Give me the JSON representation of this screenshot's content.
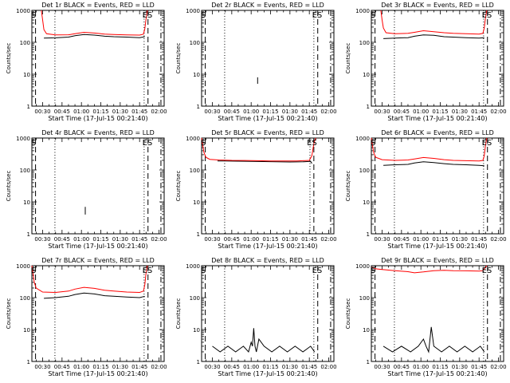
{
  "figure": {
    "title_template": "Det {det} BLACK = Events, RED = LLD",
    "xlabel": "Start Time (17-Jul-15 00:21:40)",
    "ylabel": "Counts/sec",
    "xticks": [
      "00:30",
      "00:45",
      "01:00",
      "01:15",
      "01:30",
      "01:45",
      "02:00"
    ],
    "yticks": [
      "1",
      "10",
      "100",
      "1000"
    ],
    "marker_start": "S",
    "marker_end": "ES",
    "colors": {
      "events": "#000000",
      "lld": "#ff0000"
    }
  },
  "chart_data": [
    {
      "type": "line",
      "title": "Det 1r BLACK = Events, RED = LLD",
      "det": "1r",
      "ylim": [
        1,
        1000
      ],
      "yscale": "log",
      "xlim": [
        21.67,
        124
      ],
      "series": [
        {
          "name": "BLACK = Events",
          "color": "#000000",
          "x": [
            31,
            40,
            50,
            55,
            62,
            70,
            78,
            85,
            95,
            105,
            109
          ],
          "y": [
            135,
            138,
            145,
            160,
            175,
            168,
            155,
            150,
            145,
            140,
            150
          ]
        },
        {
          "name": "RED = LLD",
          "color": "#ff0000",
          "x": [
            29,
            30,
            31,
            33,
            40,
            50,
            55,
            62,
            70,
            78,
            85,
            95,
            105,
            108,
            109,
            110,
            111
          ],
          "y": [
            1000,
            500,
            250,
            185,
            170,
            172,
            185,
            205,
            195,
            180,
            175,
            170,
            168,
            180,
            260,
            550,
            1000
          ]
        }
      ],
      "markers": {
        "S": 23,
        "ES": 111
      },
      "dashed_vlines": [
        24.5,
        111.5
      ],
      "dotted_vlines": [
        39.5,
        108.5
      ],
      "dashdot_vlines": [
        121.5
      ]
    },
    {
      "type": "line",
      "title": "Det 2r BLACK = Events, RED = LLD",
      "det": "2r",
      "ylim": [
        1,
        1000
      ],
      "yscale": "log",
      "xlim": [
        21.67,
        124
      ],
      "series": [
        {
          "name": "BLACK = Events",
          "color": "#000000",
          "x": [
            65,
            65
          ],
          "y": [
            5,
            8
          ]
        }
      ],
      "markers": {
        "S": 23,
        "ES": 111
      },
      "dashed_vlines": [
        24.5,
        111.5
      ],
      "dotted_vlines": [
        39.5,
        108.5
      ],
      "dashdot_vlines": [
        121.5
      ]
    },
    {
      "type": "line",
      "title": "Det 3r BLACK = Events, RED = LLD",
      "det": "3r",
      "ylim": [
        1,
        1000
      ],
      "yscale": "log",
      "xlim": [
        21.67,
        124
      ],
      "series": [
        {
          "name": "BLACK = Events",
          "color": "#000000",
          "x": [
            31,
            40,
            50,
            55,
            62,
            70,
            78,
            85,
            95,
            105,
            109
          ],
          "y": [
            130,
            135,
            140,
            155,
            170,
            165,
            150,
            145,
            140,
            135,
            140
          ]
        },
        {
          "name": "RED = LLD",
          "color": "#ff0000",
          "x": [
            29,
            30,
            31,
            33,
            40,
            50,
            55,
            62,
            70,
            78,
            85,
            95,
            105,
            108,
            109,
            110,
            111
          ],
          "y": [
            1000,
            500,
            280,
            200,
            185,
            190,
            205,
            230,
            215,
            200,
            190,
            185,
            180,
            190,
            280,
            600,
            1000
          ]
        }
      ],
      "markers": {
        "S": 23,
        "ES": 111
      },
      "dashed_vlines": [
        24.5,
        111.5
      ],
      "dotted_vlines": [
        39.5,
        108.5
      ],
      "dashdot_vlines": [
        121.5
      ]
    },
    {
      "type": "line",
      "title": "Det 4r BLACK = Events, RED = LLD",
      "det": "4r",
      "ylim": [
        1,
        1000
      ],
      "yscale": "log",
      "xlim": [
        21.67,
        124
      ],
      "series": [
        {
          "name": "BLACK = Events",
          "color": "#000000",
          "x": [
            63,
            63
          ],
          "y": [
            4,
            7
          ]
        }
      ],
      "markers": {
        "S": 23,
        "ES": 111
      },
      "dashed_vlines": [
        24.5,
        111.5
      ],
      "dotted_vlines": [
        39.5,
        108.5
      ],
      "dashdot_vlines": [
        121.5
      ]
    },
    {
      "type": "line",
      "title": "Det 5r BLACK = Events, RED = LLD",
      "det": "5r",
      "ylim": [
        1,
        1000
      ],
      "yscale": "log",
      "xlim": [
        21.67,
        124
      ],
      "series": [
        {
          "name": "BLACK = Events",
          "color": "#000000",
          "x": [
            34,
            40,
            50,
            60,
            70,
            80,
            90,
            100,
            106,
            107
          ],
          "y": [
            190,
            190,
            188,
            185,
            183,
            180,
            178,
            180,
            185,
            160
          ]
        },
        {
          "name": "RED = LLD",
          "color": "#ff0000",
          "x": [
            21.7,
            22.5,
            23.5,
            25,
            28,
            35,
            45,
            55,
            65,
            75,
            85,
            95,
            105,
            107,
            108,
            109,
            110
          ],
          "y": [
            1000,
            600,
            350,
            250,
            215,
            205,
            200,
            198,
            195,
            192,
            190,
            190,
            200,
            280,
            500,
            800,
            1000
          ]
        }
      ],
      "markers": {
        "S": 23,
        "ES": 107
      },
      "dashed_vlines": [
        24.5,
        108.5
      ],
      "dotted_vlines": [
        39.5,
        105.5
      ],
      "dashdot_vlines": [
        121.5
      ]
    },
    {
      "type": "line",
      "title": "Det 6r BLACK = Events, RED = LLD",
      "det": "6r",
      "ylim": [
        1,
        1000
      ],
      "yscale": "log",
      "xlim": [
        21.67,
        124
      ],
      "series": [
        {
          "name": "BLACK = Events",
          "color": "#000000",
          "x": [
            31,
            40,
            50,
            55,
            62,
            70,
            78,
            85,
            95,
            105,
            109
          ],
          "y": [
            140,
            145,
            150,
            165,
            180,
            170,
            158,
            150,
            145,
            140,
            135
          ]
        },
        {
          "name": "RED = LLD",
          "color": "#ff0000",
          "x": [
            21.7,
            22.5,
            23.5,
            25,
            30,
            40,
            50,
            55,
            62,
            70,
            78,
            85,
            95,
            105,
            108,
            109,
            110,
            111
          ],
          "y": [
            1000,
            600,
            350,
            250,
            210,
            200,
            205,
            220,
            245,
            230,
            210,
            200,
            195,
            190,
            200,
            280,
            600,
            1000
          ]
        }
      ],
      "markers": {
        "S": 23,
        "ES": 111
      },
      "dashed_vlines": [
        24.5,
        111.5
      ],
      "dotted_vlines": [
        39.5,
        108.5
      ],
      "dashdot_vlines": [
        121.5
      ]
    },
    {
      "type": "line",
      "title": "Det 7r BLACK = Events, RED = LLD",
      "det": "7r",
      "ylim": [
        1,
        1000
      ],
      "yscale": "log",
      "xlim": [
        21.67,
        124
      ],
      "series": [
        {
          "name": "BLACK = Events",
          "color": "#000000",
          "x": [
            31,
            40,
            50,
            55,
            62,
            70,
            78,
            85,
            95,
            105,
            109
          ],
          "y": [
            95,
            100,
            110,
            125,
            140,
            130,
            115,
            110,
            105,
            100,
            110
          ]
        },
        {
          "name": "RED = LLD",
          "color": "#ff0000",
          "x": [
            21.7,
            22.5,
            23.5,
            25,
            30,
            40,
            50,
            55,
            62,
            70,
            78,
            85,
            95,
            105,
            108,
            109,
            110,
            111
          ],
          "y": [
            1000,
            600,
            300,
            200,
            150,
            145,
            160,
            185,
            210,
            195,
            170,
            160,
            150,
            145,
            160,
            250,
            600,
            1000
          ]
        }
      ],
      "markers": {
        "S": 23,
        "ES": 111
      },
      "dashed_vlines": [
        24.5,
        111.5
      ],
      "dotted_vlines": [
        39.5,
        108.5
      ],
      "dashdot_vlines": [
        121.5
      ]
    },
    {
      "type": "line",
      "title": "Det 8r BLACK = Events, RED = LLD",
      "det": "8r",
      "ylim": [
        1,
        1000
      ],
      "yscale": "log",
      "xlim": [
        21.67,
        124
      ],
      "series": [
        {
          "name": "BLACK = Events",
          "color": "#000000",
          "x": [
            30,
            36,
            42,
            48,
            54,
            58,
            60,
            61,
            62,
            63,
            64,
            66,
            70,
            76,
            82,
            88,
            94,
            100,
            106,
            109
          ],
          "y": [
            3,
            2,
            3,
            2,
            3,
            2,
            4,
            3,
            11,
            3,
            2,
            5,
            3,
            2,
            3,
            2,
            3,
            2,
            3,
            2
          ]
        }
      ],
      "markers": {
        "S": 23,
        "ES": 111
      },
      "dashed_vlines": [
        24.5,
        111.5
      ],
      "dotted_vlines": [
        39.5,
        108.5
      ],
      "dashdot_vlines": [
        121.5
      ]
    },
    {
      "type": "line",
      "title": "Det 9r BLACK = Events, RED = LLD",
      "det": "9r",
      "ylim": [
        1,
        1000
      ],
      "yscale": "log",
      "xlim": [
        21.67,
        124
      ],
      "series": [
        {
          "name": "BLACK = Events",
          "color": "#000000",
          "x": [
            31,
            38,
            45,
            52,
            58,
            62,
            64,
            66,
            68,
            70,
            76,
            82,
            88,
            94,
            100,
            106,
            109
          ],
          "y": [
            3,
            2,
            3,
            2,
            3,
            5,
            3,
            2,
            12,
            3,
            2,
            3,
            2,
            3,
            2,
            3,
            2
          ]
        },
        {
          "name": "RED = LLD",
          "color": "#ff0000",
          "x": [
            22,
            25,
            30,
            40,
            50,
            55,
            62,
            70,
            78,
            85,
            95,
            105,
            108,
            109,
            110,
            111
          ],
          "y": [
            900,
            800,
            760,
            700,
            650,
            600,
            640,
            700,
            720,
            700,
            690,
            680,
            700,
            780,
            900,
            1000
          ]
        }
      ],
      "markers": {
        "S": 23,
        "ES": 111
      },
      "dashed_vlines": [
        24.5,
        111.5
      ],
      "dotted_vlines": [
        39.5,
        108.5
      ],
      "dashdot_vlines": [
        121.5
      ]
    }
  ]
}
